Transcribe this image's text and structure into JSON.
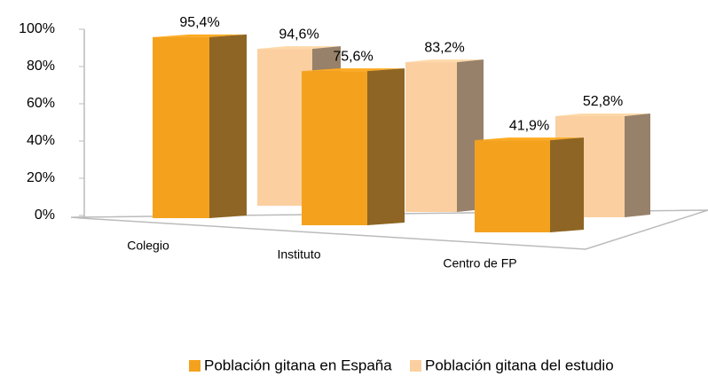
{
  "chart_data": {
    "type": "bar3d",
    "categories": [
      "Colegio",
      "Instituto",
      "Centro de FP"
    ],
    "series": [
      {
        "name": "Población gitana en España",
        "color": "#F4A21E",
        "values": [
          95.4,
          75.6,
          41.9
        ],
        "value_labels": [
          "95,4%",
          "75,6%",
          "41,9%"
        ]
      },
      {
        "name": "Población gitana del estudio",
        "color": "#FBCFA0",
        "values": [
          94.6,
          83.2,
          52.8
        ],
        "value_labels": [
          "94,6%",
          "83,2%",
          "52,8%"
        ]
      }
    ],
    "ylim": [
      0,
      100
    ],
    "yticks": [
      {
        "value": 0,
        "label": "0%"
      },
      {
        "value": 20,
        "label": "20%"
      },
      {
        "value": 40,
        "label": "40%"
      },
      {
        "value": 60,
        "label": "60%"
      },
      {
        "value": 80,
        "label": "80%"
      },
      {
        "value": 100,
        "label": "100%"
      }
    ],
    "legend": "bottom"
  }
}
